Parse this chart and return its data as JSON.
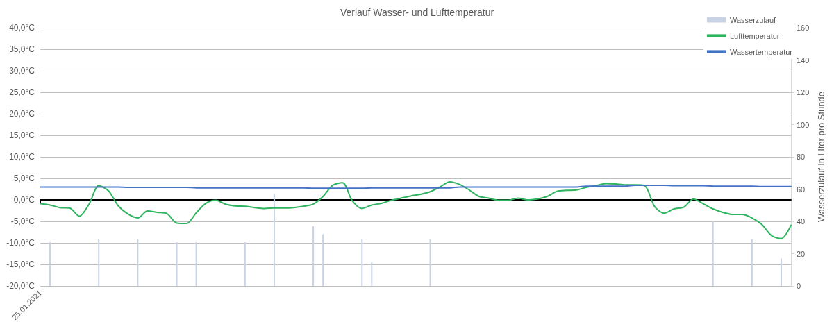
{
  "chart_data": {
    "type": "line",
    "title": "Verlauf Wasser- und Lufttemperatur",
    "y2label": "Wasserzulauf in Liter pro Stunde",
    "categories": [
      "25.01.2021",
      null,
      null,
      null,
      null,
      null,
      null,
      null,
      null,
      null,
      null,
      null,
      null,
      null,
      null,
      null,
      null,
      null,
      null,
      null,
      null,
      null,
      null,
      null,
      null,
      null,
      null,
      null,
      null,
      null,
      null,
      null,
      null,
      null,
      null,
      null,
      null,
      null,
      null,
      null,
      null,
      null,
      null,
      null,
      null,
      null,
      null,
      null,
      null,
      null,
      null,
      null,
      null,
      null,
      null,
      null,
      null,
      null,
      null,
      null,
      null,
      null,
      null,
      null,
      null,
      null,
      null,
      null,
      null,
      null,
      null,
      null,
      null,
      null,
      null,
      null,
      null,
      null
    ],
    "ylim": [
      -20,
      40
    ],
    "yticks": [
      {
        "value": -20,
        "label": "-20,0°C"
      },
      {
        "value": -15,
        "label": "-15,0°C"
      },
      {
        "value": -10,
        "label": "-10,0°C"
      },
      {
        "value": -5,
        "label": "-5,0°C"
      },
      {
        "value": 0,
        "label": "0,0°C"
      },
      {
        "value": 5,
        "label": "5,0°C"
      },
      {
        "value": 10,
        "label": "10,0°C"
      },
      {
        "value": 15,
        "label": "15,0°C"
      },
      {
        "value": 20,
        "label": "20,0°C"
      },
      {
        "value": 25,
        "label": "25,0°C"
      },
      {
        "value": 30,
        "label": "30,0°C"
      },
      {
        "value": 35,
        "label": "35,0°C"
      },
      {
        "value": 40,
        "label": "40,0°C"
      }
    ],
    "y2lim": [
      0,
      160
    ],
    "y2ticks": [
      0,
      20,
      40,
      60,
      80,
      100,
      120,
      140,
      160
    ],
    "grid": "y",
    "legend": "top right",
    "marker": "none",
    "line_style": "solid",
    "series": [
      {
        "name": "Wasserzulauf",
        "type": "bar",
        "axis": "y2",
        "color": "#c9d3e6",
        "values": [
          null,
          27,
          null,
          null,
          null,
          null,
          29,
          null,
          null,
          null,
          29,
          null,
          null,
          null,
          27,
          null,
          27,
          null,
          null,
          null,
          null,
          27,
          null,
          null,
          57,
          null,
          null,
          null,
          37,
          32,
          null,
          null,
          null,
          29,
          15,
          null,
          null,
          null,
          null,
          null,
          29,
          null,
          null,
          null,
          null,
          null,
          null,
          null,
          null,
          null,
          null,
          null,
          null,
          null,
          null,
          null,
          null,
          null,
          null,
          null,
          null,
          null,
          null,
          null,
          null,
          null,
          null,
          null,
          null,
          40,
          null,
          null,
          null,
          29,
          null,
          null,
          17,
          null
        ]
      },
      {
        "name": "Lufttemperatur",
        "color": "#2eb35e",
        "values": [
          -0.9,
          -1.2,
          -1.8,
          -1.9,
          -3.8,
          -1.0,
          3.3,
          2.1,
          -1.4,
          -3.3,
          -4.2,
          -2.6,
          -2.9,
          -3.2,
          -5.4,
          -5.5,
          -3.0,
          -0.8,
          -0.1,
          -1.0,
          -1.4,
          -1.5,
          -1.8,
          -2.0,
          -1.9,
          -1.9,
          -1.8,
          -1.5,
          -1.0,
          0.8,
          3.4,
          4.0,
          -0.2,
          -2.0,
          -1.2,
          -0.8,
          -0.1,
          0.4,
          0.9,
          1.3,
          1.9,
          3.0,
          4.2,
          3.6,
          2.3,
          0.8,
          0.4,
          -0.1,
          -0.1,
          0.4,
          0.0,
          0.2,
          0.8,
          2.0,
          2.2,
          2.3,
          2.9,
          3.3,
          3.8,
          3.7,
          3.5,
          3.5,
          3.3,
          -1.5,
          -3.1,
          -2.1,
          -1.7,
          0.2,
          -0.9,
          -2.1,
          -2.9,
          -3.4,
          -3.4,
          -4.2,
          -5.7,
          -8.3,
          -9.0,
          -5.9
        ]
      },
      {
        "name": "Wassertemperatur",
        "color": "#4472c4",
        "values": [
          3.0,
          3.0,
          3.0,
          3.0,
          3.0,
          3.0,
          3.0,
          3.0,
          3.0,
          2.9,
          2.9,
          2.9,
          2.9,
          2.9,
          2.9,
          2.9,
          2.8,
          2.8,
          2.8,
          2.8,
          2.8,
          2.8,
          2.8,
          2.8,
          2.8,
          2.8,
          2.8,
          2.8,
          2.7,
          2.7,
          2.7,
          2.7,
          2.7,
          2.7,
          2.8,
          2.8,
          2.8,
          2.8,
          2.8,
          2.8,
          2.8,
          2.8,
          2.8,
          3.0,
          3.0,
          3.0,
          3.0,
          3.0,
          3.0,
          3.0,
          3.0,
          3.0,
          3.0,
          3.0,
          3.0,
          3.0,
          3.2,
          3.2,
          3.2,
          3.2,
          3.2,
          3.4,
          3.4,
          3.4,
          3.4,
          3.3,
          3.3,
          3.3,
          3.3,
          3.2,
          3.2,
          3.2,
          3.2,
          3.2,
          3.1,
          3.1,
          3.1,
          3.1
        ]
      }
    ]
  }
}
